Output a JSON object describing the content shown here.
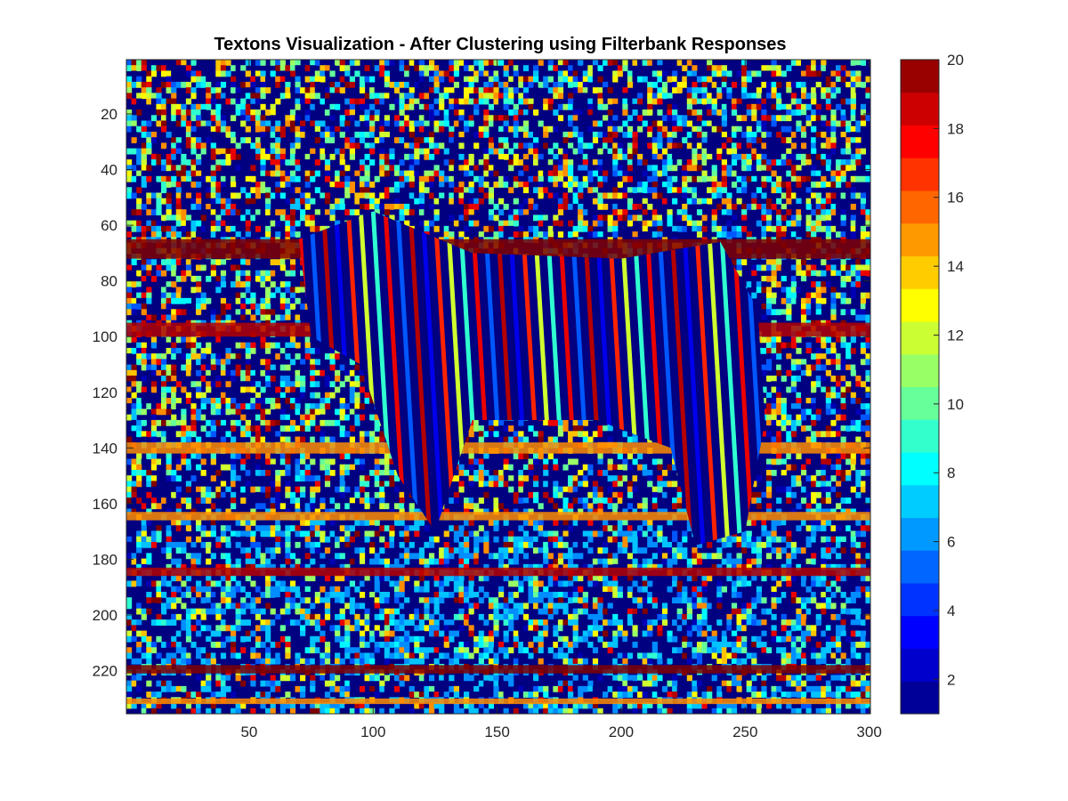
{
  "chart_data": {
    "type": "heatmap",
    "title": "Textons Visualization - After Clustering using Filterbank Responses",
    "xlabel": "",
    "ylabel": "",
    "x_range": [
      1,
      300
    ],
    "y_range": [
      1,
      235
    ],
    "y_reversed": true,
    "xticks": [
      50,
      100,
      150,
      200,
      250,
      300
    ],
    "yticks": [
      20,
      40,
      60,
      80,
      100,
      120,
      140,
      160,
      180,
      200,
      220
    ],
    "colormap": "jet",
    "clim": [
      1,
      20
    ],
    "colorbar": {
      "ticks": [
        2,
        4,
        6,
        8,
        10,
        12,
        14,
        16,
        18,
        20
      ],
      "levels": 20
    },
    "content": "Texton label map (20 clusters) of a zebra image: dark blue background regions, red/orange/blue striped zebra body in center, mixed cyan/yellow/green texture noise throughout",
    "grid": false,
    "legend": "none"
  }
}
